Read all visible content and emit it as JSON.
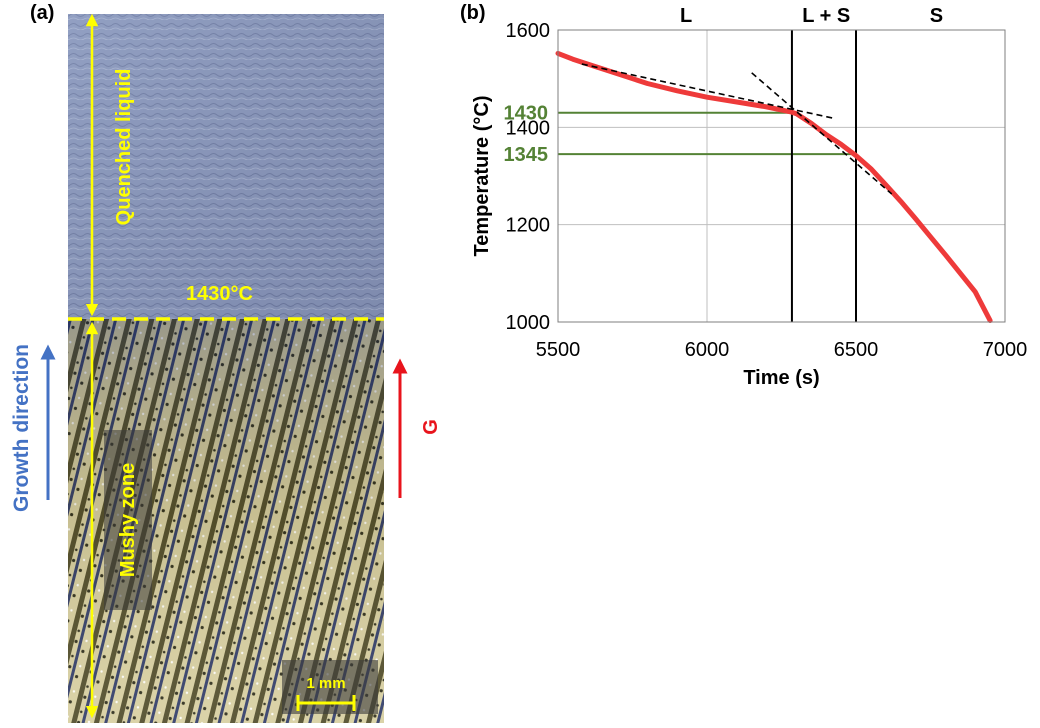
{
  "panels": {
    "a_label": "(a)",
    "b_label": "(b)"
  },
  "micrograph": {
    "quenched_label": "Quenched liquid",
    "mushy_label": "Mushy zone",
    "interface_label": "1430°C",
    "scale_bar_label": "1 mm",
    "growth_label": "Growth direction",
    "gradient_label": "G",
    "colors": {
      "annotation": "#ffff00",
      "growth_arrow": "#4472c4",
      "gradient_arrow": "#e8141c",
      "quenched_tint": "#8e9ab8",
      "mushy_tint": "#c2b888"
    }
  },
  "chart_data": {
    "type": "line",
    "xlabel": "Time (s)",
    "ylabel": "Temperature (°C)",
    "xlim": [
      5500,
      7000
    ],
    "ylim": [
      1000,
      1600
    ],
    "xticks": [
      5500,
      6000,
      6500,
      7000
    ],
    "yticks": [
      1000,
      1200,
      1400,
      1600
    ],
    "grid": true,
    "series": [
      {
        "color": "#ee3a3a",
        "x": [
          5500,
          5550,
          5600,
          5700,
          5800,
          5900,
          6000,
          6100,
          6200,
          6280,
          6300,
          6350,
          6400,
          6450,
          6500,
          6550,
          6600,
          6650,
          6700,
          6750,
          6800,
          6850,
          6900,
          6950
        ],
        "y": [
          1552,
          1540,
          1530,
          1510,
          1490,
          1475,
          1462,
          1452,
          1442,
          1432,
          1428,
          1408,
          1385,
          1365,
          1342,
          1315,
          1282,
          1248,
          1212,
          1175,
          1138,
          1100,
          1062,
          1003
        ]
      }
    ],
    "fit_lines": [
      {
        "x": [
          5580,
          6430
        ],
        "y": [
          1530,
          1418
        ]
      },
      {
        "x": [
          6150,
          6620
        ],
        "y": [
          1512,
          1263
        ]
      }
    ],
    "phase_lines": {
      "x": [
        6285,
        6500
      ]
    },
    "phase_labels": [
      {
        "text": "L",
        "x": 5930
      },
      {
        "text": "L + S",
        "x": 6400
      },
      {
        "text": "S",
        "x": 6770
      }
    ],
    "reference_lines": [
      {
        "label": "1430",
        "y": 1430,
        "x_end": 6285
      },
      {
        "label": "1345",
        "y": 1345,
        "x_end": 6500
      }
    ],
    "reference_color": "#548235"
  }
}
